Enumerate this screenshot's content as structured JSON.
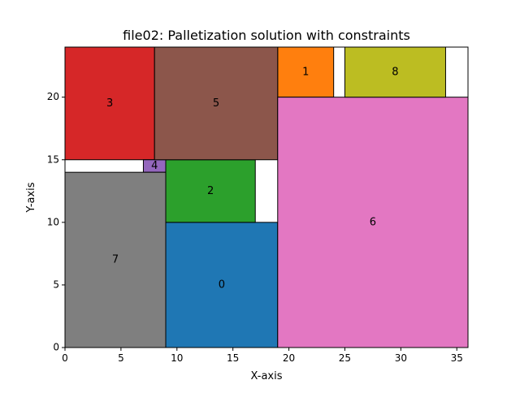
{
  "chart_data": {
    "type": "rectangles",
    "title": "file02: Palletization solution with constraints",
    "xlabel": "X-axis",
    "ylabel": "Y-axis",
    "xlim": [
      0,
      36
    ],
    "ylim": [
      0,
      24
    ],
    "xticks": [
      0,
      5,
      10,
      15,
      20,
      25,
      30,
      35
    ],
    "yticks": [
      0,
      5,
      10,
      15,
      20
    ],
    "grid": false,
    "items": [
      {
        "id": "0",
        "x": 9,
        "y": 0,
        "w": 10,
        "h": 10,
        "color": "#1f77b4"
      },
      {
        "id": "1",
        "x": 19,
        "y": 20,
        "w": 5,
        "h": 4,
        "color": "#ff7f0e"
      },
      {
        "id": "2",
        "x": 9,
        "y": 10,
        "w": 8,
        "h": 5,
        "color": "#2ca02c"
      },
      {
        "id": "3",
        "x": 0,
        "y": 15,
        "w": 8,
        "h": 9,
        "color": "#d62728"
      },
      {
        "id": "4",
        "x": 7,
        "y": 14,
        "w": 2,
        "h": 1,
        "color": "#9467bd"
      },
      {
        "id": "5",
        "x": 8,
        "y": 15,
        "w": 11,
        "h": 9,
        "color": "#8c564b"
      },
      {
        "id": "6",
        "x": 19,
        "y": 0,
        "w": 17,
        "h": 20,
        "color": "#e377c2"
      },
      {
        "id": "7",
        "x": 0,
        "y": 0,
        "w": 9,
        "h": 14,
        "color": "#7f7f7f"
      },
      {
        "id": "8",
        "x": 25,
        "y": 20,
        "w": 9,
        "h": 4,
        "color": "#bcbd22"
      }
    ]
  }
}
